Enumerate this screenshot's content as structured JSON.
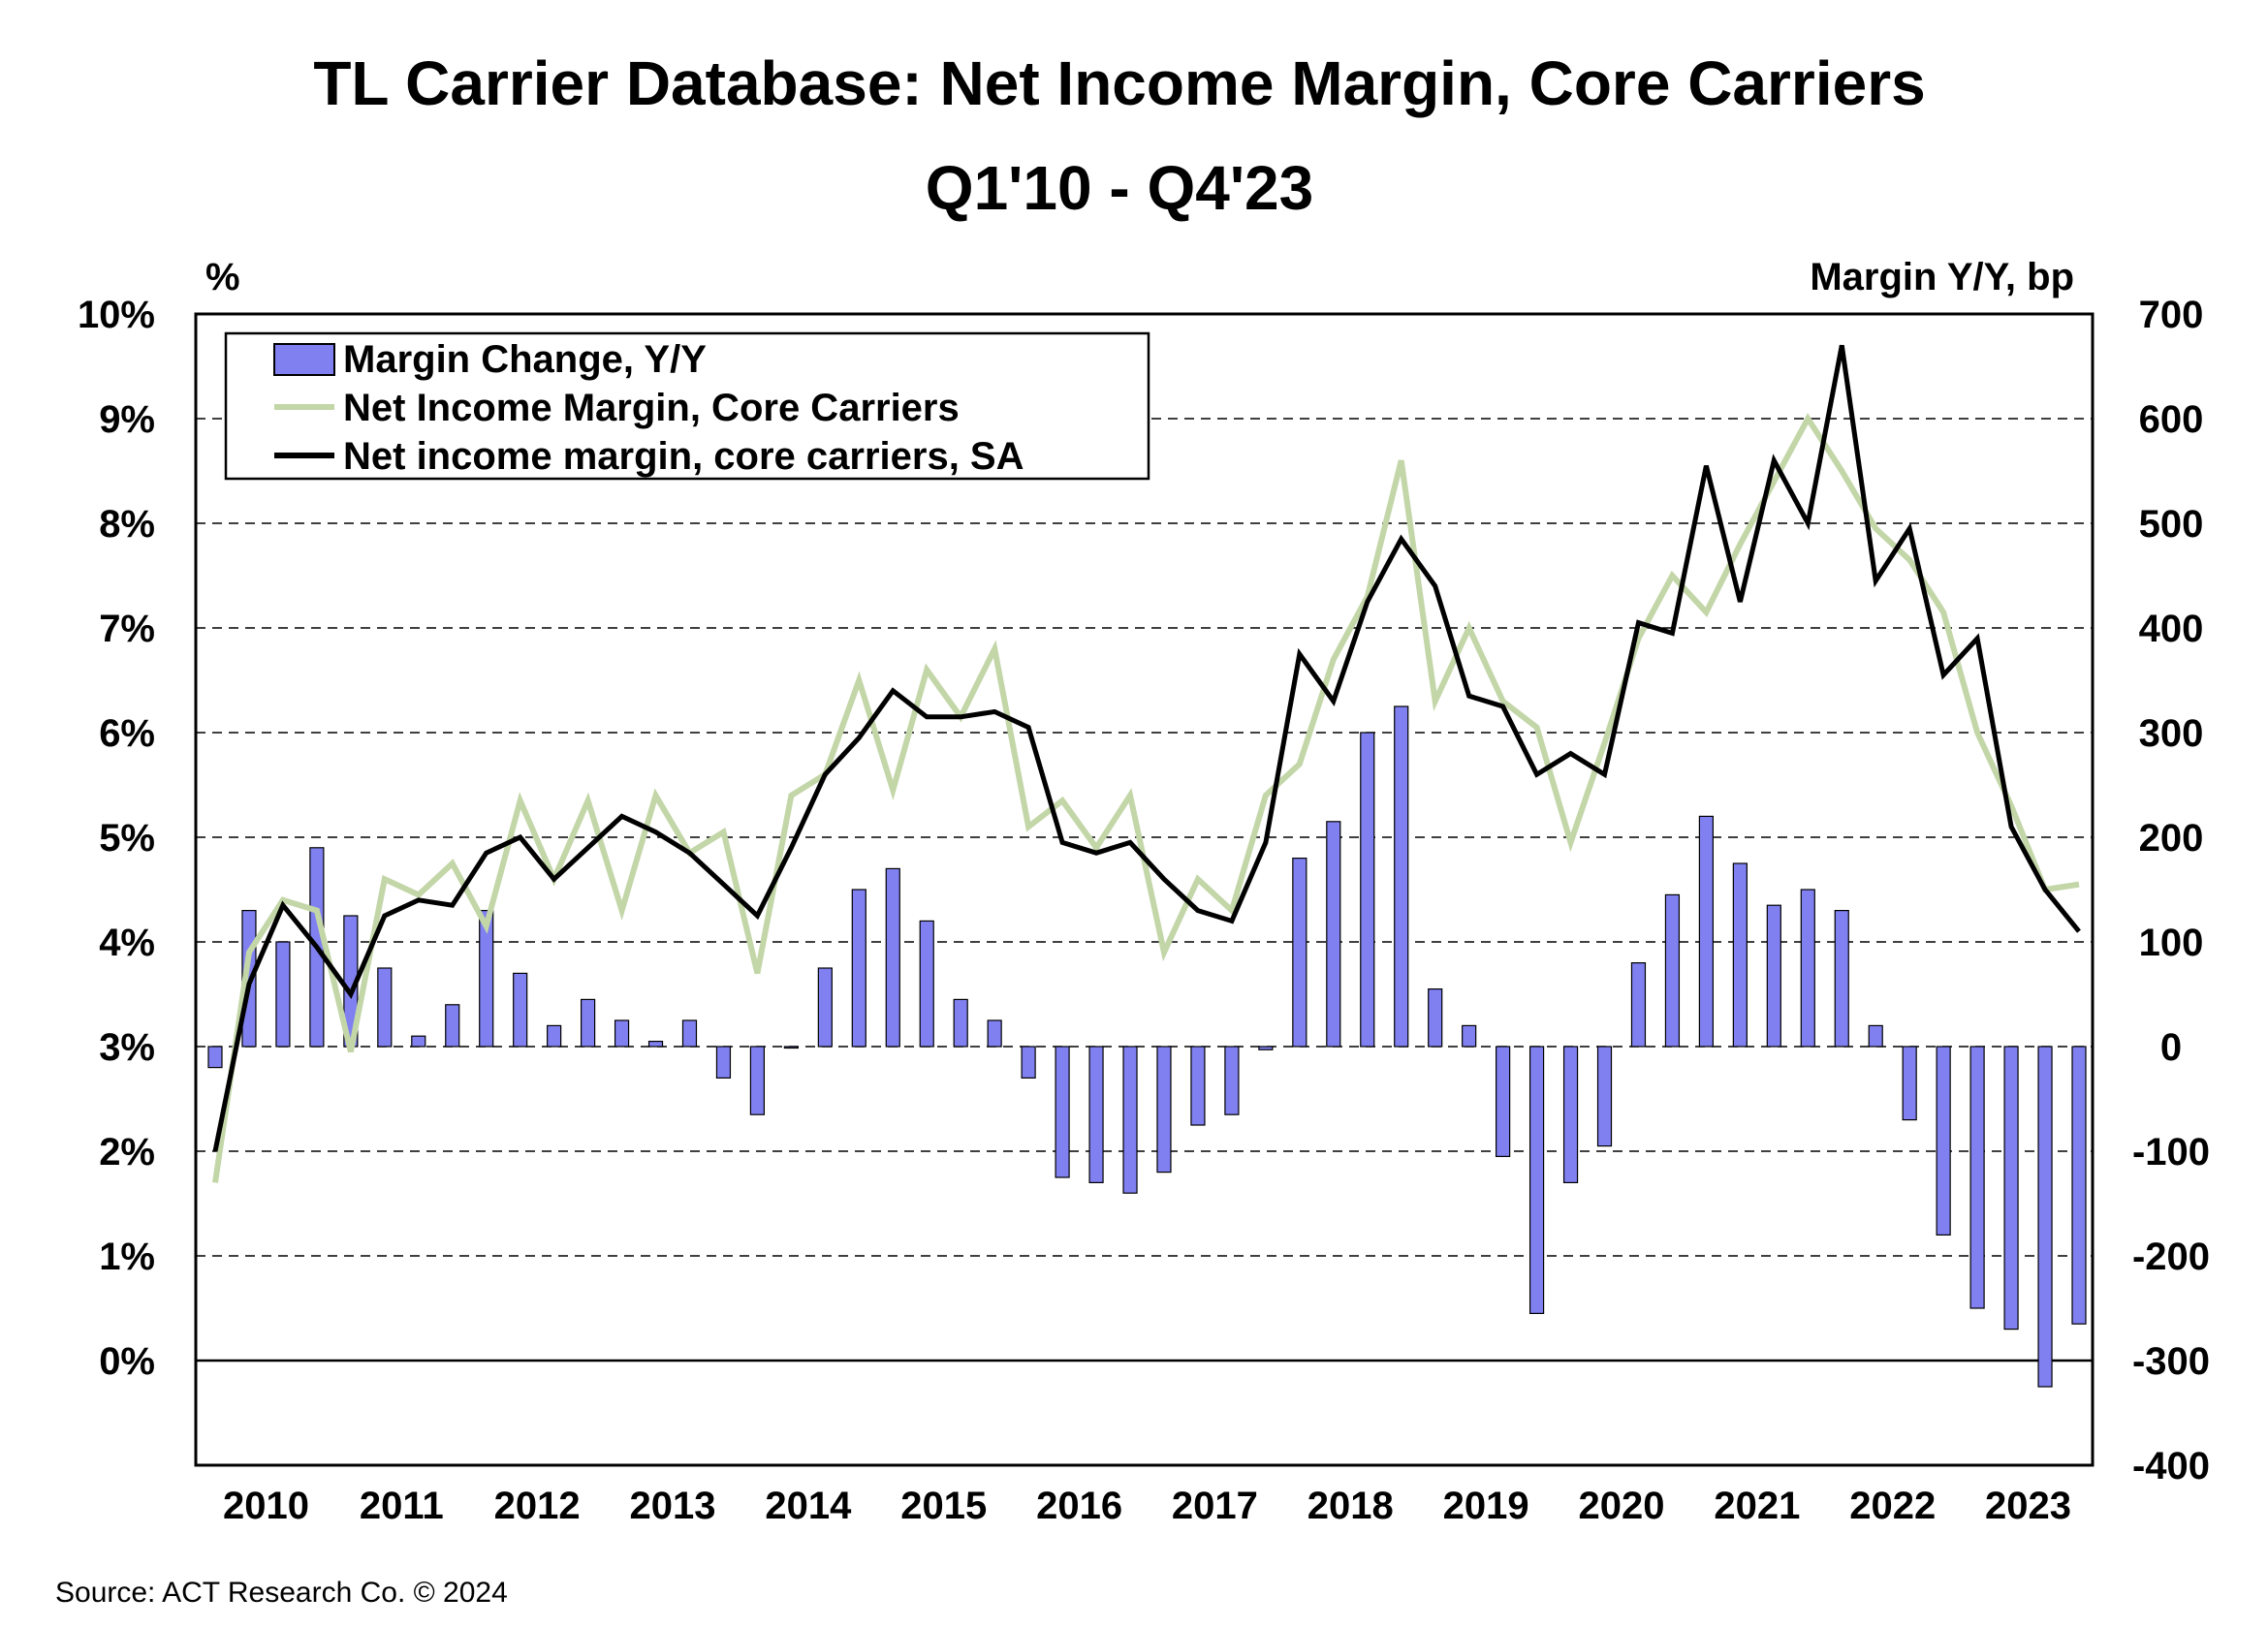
{
  "chart_data": {
    "type": "bar-line-combo",
    "title": "TL Carrier Database: Net Income Margin, Core Carriers",
    "subtitle": "Q1'10 - Q4'23",
    "left_axis": {
      "unit_label": "%",
      "range": [
        -1,
        10
      ],
      "ticks": [
        "10%",
        "9%",
        "8%",
        "7%",
        "6%",
        "5%",
        "4%",
        "3%",
        "2%",
        "1%",
        "0%"
      ],
      "tick_values": [
        10,
        9,
        8,
        7,
        6,
        5,
        4,
        3,
        2,
        1,
        0
      ]
    },
    "right_axis": {
      "unit_label": "Margin Y/Y, bp",
      "range": [
        -400,
        700
      ],
      "ticks": [
        "700",
        "600",
        "500",
        "400",
        "300",
        "200",
        "100",
        "0",
        "-100",
        "-200",
        "-300",
        "-400"
      ],
      "tick_values": [
        700,
        600,
        500,
        400,
        300,
        200,
        100,
        0,
        -100,
        -200,
        -300,
        -400
      ]
    },
    "x_axis": {
      "years": [
        "2010",
        "2011",
        "2012",
        "2013",
        "2014",
        "2015",
        "2016",
        "2017",
        "2018",
        "2019",
        "2020",
        "2021",
        "2022",
        "2023"
      ],
      "quarters_per_year": 4
    },
    "legend": {
      "placement": "top-left",
      "entries": [
        {
          "label": "Margin Change, Y/Y",
          "swatch": "bar"
        },
        {
          "label": "Net Income Margin, Core Carriers",
          "swatch": "line-light"
        },
        {
          "label": "Net income margin, core carriers, SA",
          "swatch": "line-dark"
        }
      ]
    },
    "series": [
      {
        "name": "Margin Change, Y/Y",
        "kind": "bar",
        "axis": "right",
        "color": "#8080f0",
        "values": [
          -20,
          130,
          100,
          190,
          125,
          75,
          10,
          40,
          130,
          70,
          20,
          45,
          25,
          5,
          25,
          -30,
          -65,
          0,
          75,
          150,
          170,
          120,
          45,
          25,
          -30,
          -125,
          -130,
          -140,
          -120,
          -75,
          -65,
          -3,
          180,
          215,
          300,
          325,
          55,
          20,
          -105,
          -255,
          -130,
          -95,
          80,
          145,
          220,
          175,
          135,
          150,
          130,
          20,
          -70,
          -180,
          -250,
          -270,
          -325,
          -265
        ]
      },
      {
        "name": "Net Income Margin, Core Carriers",
        "kind": "line",
        "axis": "left",
        "color": "#c3d6a8",
        "values": [
          1.7,
          3.9,
          4.4,
          4.3,
          2.95,
          4.6,
          4.45,
          4.75,
          4.15,
          5.35,
          4.6,
          5.35,
          4.3,
          5.4,
          4.85,
          5.05,
          3.7,
          5.4,
          5.6,
          6.5,
          5.45,
          6.6,
          6.15,
          6.8,
          5.1,
          5.35,
          4.9,
          5.4,
          3.9,
          4.6,
          4.3,
          5.4,
          5.7,
          6.7,
          7.3,
          8.6,
          6.3,
          7.0,
          6.3,
          6.05,
          4.95,
          5.9,
          6.9,
          7.5,
          7.15,
          7.8,
          8.4,
          9.0,
          8.5,
          7.95,
          7.65,
          7.15,
          6.0,
          5.3,
          4.5,
          4.55
        ]
      },
      {
        "name": "Net income margin, core carriers, SA",
        "kind": "line",
        "axis": "left",
        "color": "#000000",
        "values": [
          2.0,
          3.6,
          4.35,
          3.95,
          3.5,
          4.25,
          4.4,
          4.35,
          4.85,
          5.0,
          4.6,
          4.9,
          5.2,
          5.05,
          4.85,
          4.55,
          4.25,
          4.9,
          5.6,
          5.95,
          6.4,
          6.15,
          6.15,
          6.2,
          6.05,
          4.95,
          4.85,
          4.95,
          4.6,
          4.3,
          4.2,
          4.95,
          6.75,
          6.3,
          7.25,
          7.85,
          7.4,
          6.35,
          6.25,
          5.6,
          5.8,
          5.6,
          7.05,
          6.95,
          8.55,
          7.25,
          8.6,
          8.0,
          9.7,
          7.45,
          7.95,
          6.55,
          6.9,
          5.1,
          4.5,
          4.1
        ]
      }
    ],
    "grid": "horizontal-dashed",
    "source": "Source:  ACT Research  Co. © 2024"
  }
}
